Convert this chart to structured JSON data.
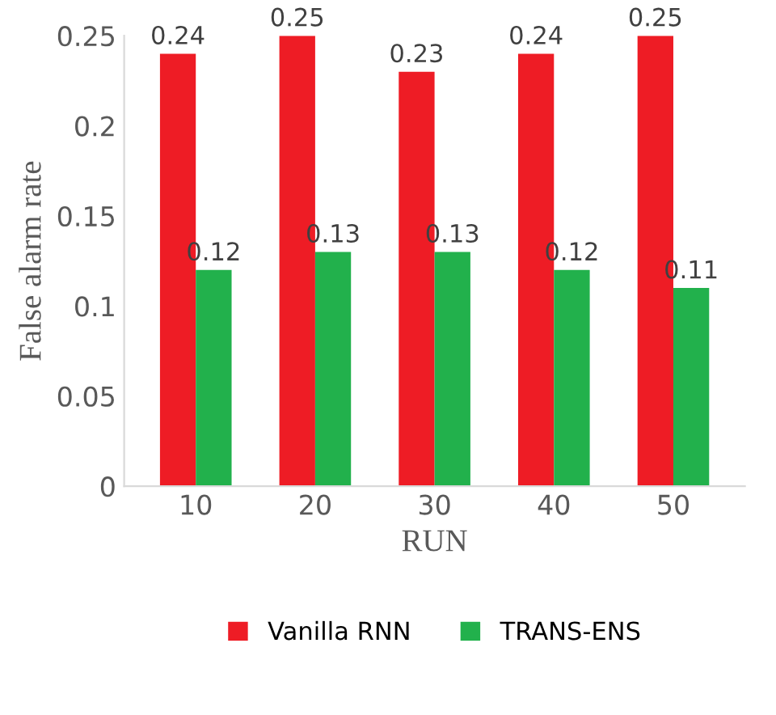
{
  "chart_data": {
    "type": "bar",
    "xlabel": "RUN",
    "ylabel": "False alarm rate",
    "categories": [
      "10",
      "20",
      "30",
      "40",
      "50"
    ],
    "series": [
      {
        "name": "Vanilla RNN",
        "color": "#ee1c25",
        "values": [
          0.24,
          0.25,
          0.23,
          0.24,
          0.25
        ]
      },
      {
        "name": "TRANS-ENS",
        "color": "#22b14c",
        "values": [
          0.12,
          0.13,
          0.13,
          0.12,
          0.11
        ]
      }
    ],
    "ylim": [
      0,
      0.25
    ],
    "yticks": [
      0,
      0.05,
      0.1,
      0.15,
      0.2,
      0.25
    ],
    "data_labels": true,
    "legend": "bottom"
  }
}
